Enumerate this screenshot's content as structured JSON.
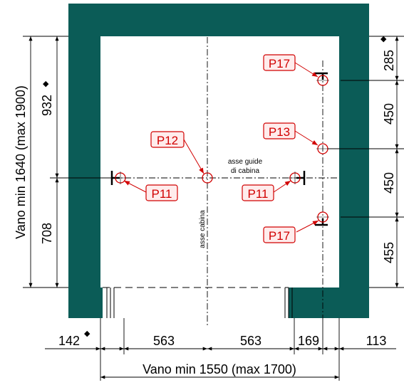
{
  "colors": {
    "wall": "#0b5c57",
    "tag_border": "#d10000",
    "tag_fill": "#ffecec",
    "tag_text": "#d10000",
    "point": "#d10000",
    "line": "#000000"
  },
  "tags": {
    "p17_top": "P17",
    "p13": "P13",
    "p12": "P12",
    "p11_left": "P11",
    "p11_right": "P11",
    "p17_bottom": "P17"
  },
  "notes": {
    "asse_guide_line1": "asse guide",
    "asse_guide_line2": "di cabina",
    "asse_cabina": "asse cabina"
  },
  "dimensions": {
    "vano_height": "Vano min 1640 (max 1900)",
    "upper_left": "932",
    "lower_left": "708",
    "right_285": "285",
    "right_450a": "450",
    "right_450b": "450",
    "right_455": "455",
    "bottom_142": "142",
    "bottom_563a": "563",
    "bottom_563b": "563",
    "bottom_169": "169",
    "bottom_113": "113",
    "vano_width": "Vano min 1550 (max 1700)"
  },
  "markers": {
    "diamond": "◆"
  }
}
